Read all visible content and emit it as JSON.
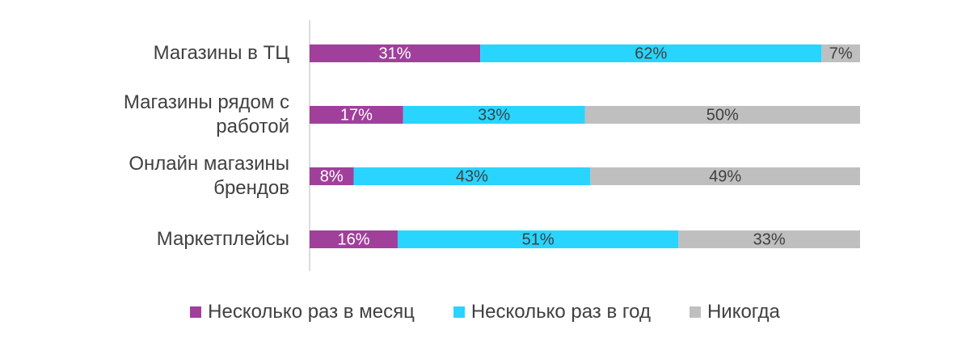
{
  "chart_data": {
    "type": "stacked-bar-horizontal",
    "categories": [
      "Магазины в ТЦ",
      "Магазины рядом с работой",
      "Онлайн магазины брендов",
      "Маркетплейсы"
    ],
    "series": [
      {
        "name": "Несколько раз в месяц",
        "color": "#a0409a",
        "values": [
          31,
          17,
          8,
          16
        ],
        "value_labels": [
          "31%",
          "17%",
          "8%",
          "16%"
        ]
      },
      {
        "name": "Несколько раз в год",
        "color": "#29d4ff",
        "values": [
          62,
          33,
          43,
          51
        ],
        "value_labels": [
          "62%",
          "33%",
          "43%",
          "51%"
        ]
      },
      {
        "name": "Никогда",
        "color": "#bfbfbf",
        "values": [
          7,
          50,
          49,
          33
        ],
        "value_labels": [
          "7%",
          "50%",
          "49%",
          "33%"
        ]
      }
    ],
    "xlim": [
      0,
      100
    ],
    "legend": "bottom"
  }
}
